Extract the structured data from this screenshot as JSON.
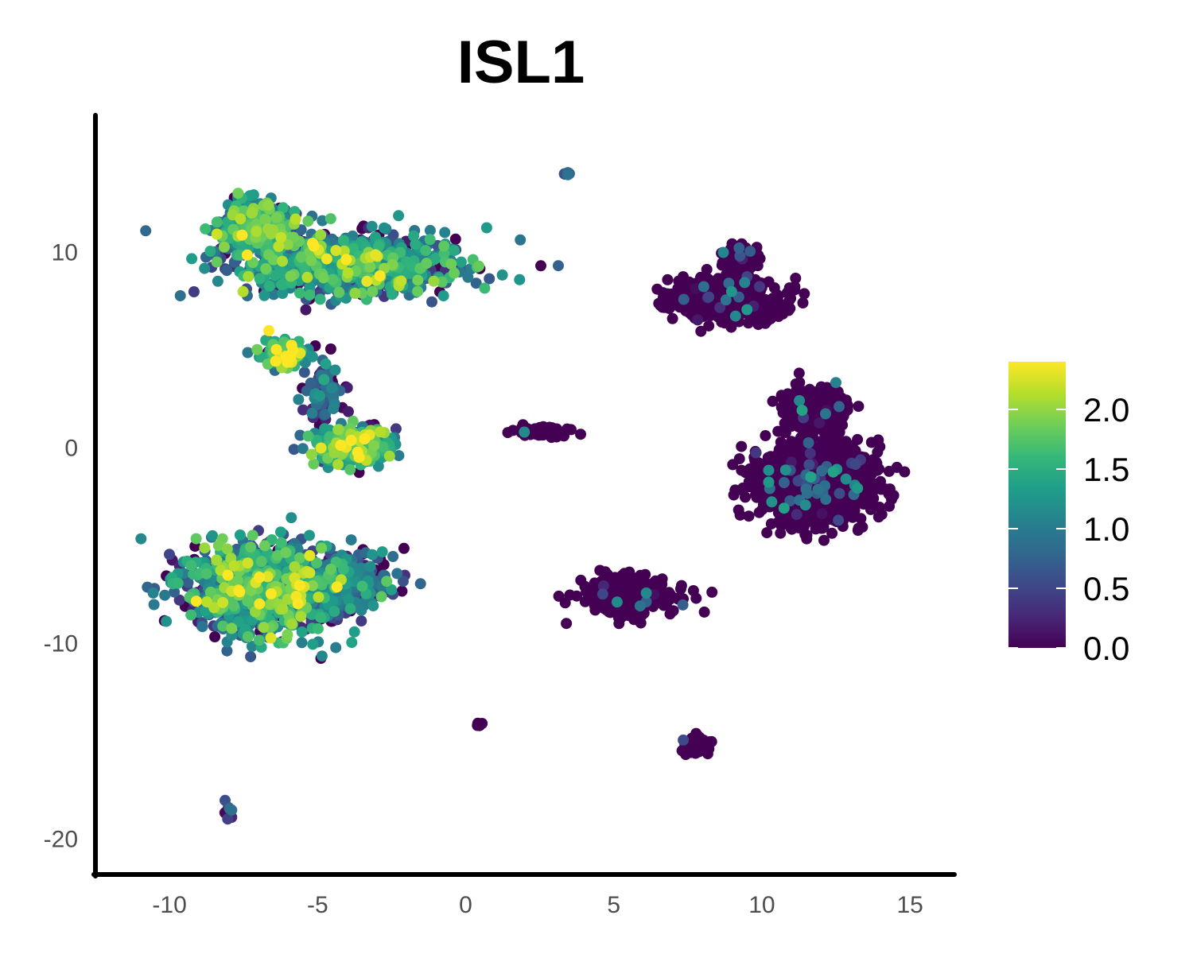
{
  "chart_data": {
    "type": "scatter",
    "title": "ISL1",
    "xlabel": "",
    "ylabel": "",
    "xlim": [
      -12.5,
      16.5
    ],
    "ylim": [
      -21.8,
      17
    ],
    "x_ticks": [
      -10,
      -5,
      0,
      5,
      10,
      15
    ],
    "y_ticks": [
      -20,
      -10,
      0,
      10
    ],
    "x_tick_labels": [
      "-10",
      "-5",
      "0",
      "5",
      "10",
      "15"
    ],
    "y_tick_labels": [
      "-20",
      "-10",
      "0",
      "10"
    ],
    "grid": false,
    "legend": {
      "placement": "right",
      "type": "colorbar",
      "min": 0,
      "max": 2.4,
      "ticks": [
        0.0,
        0.5,
        1.0,
        1.5,
        2.0
      ],
      "tick_labels": [
        "0.0",
        "0.5",
        "1.0",
        "1.5",
        "2.0"
      ],
      "colormap": [
        "#440154",
        "#482878",
        "#3e4a89",
        "#31688e",
        "#26828e",
        "#1f9e89",
        "#35b779",
        "#6ece58",
        "#b5de2b",
        "#fde725"
      ]
    },
    "clusters": [
      {
        "name": "upper-left-large",
        "x": -3.8,
        "y": 9.4,
        "sx": 3.3,
        "sy": 1.4,
        "n": 900,
        "expr": 1.05,
        "spread": 0.5
      },
      {
        "name": "upper-left-lobe",
        "x": -7.0,
        "y": 11.2,
        "sx": 1.1,
        "sy": 1.2,
        "n": 350,
        "expr": 1.35,
        "spread": 0.45
      },
      {
        "name": "mid-small-left",
        "x": -6.2,
        "y": 4.8,
        "sx": 0.7,
        "sy": 0.6,
        "n": 120,
        "expr": 1.45,
        "spread": 0.5
      },
      {
        "name": "bridge",
        "x": -4.8,
        "y": 2.8,
        "sx": 0.6,
        "sy": 1.3,
        "n": 90,
        "expr": 0.6,
        "spread": 0.4
      },
      {
        "name": "center-left",
        "x": -3.8,
        "y": 0.1,
        "sx": 1.1,
        "sy": 0.8,
        "n": 380,
        "expr": 1.3,
        "spread": 0.55
      },
      {
        "name": "lower-left",
        "x": -6.8,
        "y": -7.2,
        "sx": 2.3,
        "sy": 2.0,
        "n": 1100,
        "expr": 1.1,
        "spread": 0.55
      },
      {
        "name": "lower-left-right",
        "x": -4.0,
        "y": -6.8,
        "sx": 1.3,
        "sy": 1.3,
        "n": 400,
        "expr": 0.55,
        "spread": 0.45
      },
      {
        "name": "tiny-bottom-left",
        "x": -8.0,
        "y": -18.6,
        "sx": 0.2,
        "sy": 0.4,
        "n": 10,
        "expr": 0.45,
        "spread": 0.3
      },
      {
        "name": "tiny-top",
        "x": 3.4,
        "y": 14.0,
        "sx": 0.15,
        "sy": 0.1,
        "n": 6,
        "expr": 0.6,
        "spread": 0.3
      },
      {
        "name": "center-tiny",
        "x": 2.5,
        "y": 0.9,
        "sx": 1.0,
        "sy": 0.3,
        "n": 60,
        "expr": 0.03,
        "spread": 0.15
      },
      {
        "name": "tiny-center-bottom",
        "x": 0.5,
        "y": -14.1,
        "sx": 0.2,
        "sy": 0.1,
        "n": 6,
        "expr": 0.0,
        "spread": 0.05
      },
      {
        "name": "upper-right",
        "x": 8.8,
        "y": 7.6,
        "sx": 1.5,
        "sy": 1.0,
        "n": 600,
        "expr": 0.04,
        "spread": 0.2
      },
      {
        "name": "upper-right-lobe",
        "x": 9.3,
        "y": 9.6,
        "sx": 0.5,
        "sy": 0.6,
        "n": 150,
        "expr": 0.04,
        "spread": 0.2
      },
      {
        "name": "right-large",
        "x": 11.8,
        "y": -1.8,
        "sx": 1.6,
        "sy": 1.7,
        "n": 1800,
        "expr": 0.02,
        "spread": 0.2
      },
      {
        "name": "right-upper-arm",
        "x": 11.8,
        "y": 2.0,
        "sx": 0.9,
        "sy": 1.1,
        "n": 300,
        "expr": 0.02,
        "spread": 0.2
      },
      {
        "name": "right-ring",
        "x": 5.5,
        "y": -7.6,
        "sx": 1.5,
        "sy": 0.9,
        "n": 260,
        "expr": 0.06,
        "spread": 0.25
      },
      {
        "name": "bottom-right-small",
        "x": 7.8,
        "y": -15.2,
        "sx": 0.4,
        "sy": 0.4,
        "n": 90,
        "expr": 0.08,
        "spread": 0.3
      }
    ]
  }
}
